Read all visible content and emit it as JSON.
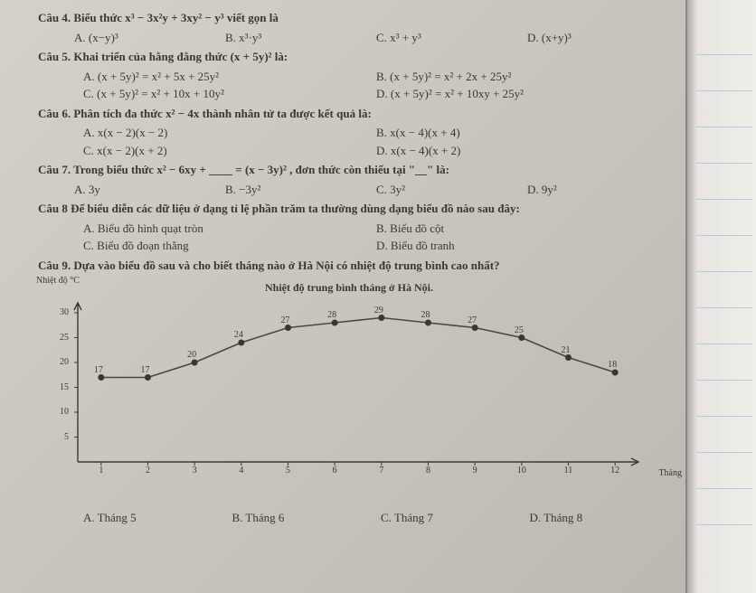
{
  "q4": {
    "stem": "Câu 4. Biểu thức x³ − 3x²y + 3xy² − y³ viết gọn là",
    "a": "A. (x−y)³",
    "b": "B. x³·y³",
    "c": "C. x³ + y³",
    "d": "D. (x+y)³"
  },
  "q5": {
    "stem": "Câu 5. Khai triển của hằng đẳng thức (x + 5y)² là:",
    "a": "A. (x + 5y)² = x² + 5x + 25y²",
    "b": "B. (x + 5y)² = x² + 2x + 25y²",
    "c": "C. (x + 5y)² = x² + 10x + 10y²",
    "d": "D. (x + 5y)² = x² + 10xy + 25y²"
  },
  "q6": {
    "stem": "Câu 6. Phân tích đa thức  x² − 4x  thành nhân tử ta được kết quả là:",
    "a": "A. x(x − 2)(x − 2)",
    "b": "B. x(x − 4)(x + 4)",
    "c": "C. x(x − 2)(x + 2)",
    "d": "D. x(x − 4)(x + 2)"
  },
  "q7": {
    "stem": "Câu 7. Trong biểu thức  x² − 6xy + ____ = (x − 3y)² , đơn thức còn thiếu tại \"__\" là:",
    "a": "A. 3y",
    "b": "B. −3y²",
    "c": "C. 3y²",
    "d": "D. 9y²"
  },
  "q8": {
    "stem": "Câu 8 Để biểu diễn các dữ liệu ở dạng tỉ lệ phần trăm ta thường dùng dạng biểu đồ nào sau đây:",
    "a": "A. Biểu đồ hình quạt tròn",
    "b": "B. Biểu đồ cột",
    "c": "C. Biểu đồ đoạn thẳng",
    "d": "D. Biểu đồ tranh"
  },
  "q9": {
    "stem": "Câu 9. Dựa vào biểu đồ sau và cho biết tháng nào ở Hà Nội có nhiệt độ trung bình cao nhất?",
    "a": "A. Tháng 5",
    "b": "B. Tháng 6",
    "c": "C. Tháng 7",
    "d": "D. Tháng 8"
  },
  "chart": {
    "type": "line",
    "title": "Nhiệt độ trung bình tháng ở Hà Nội.",
    "ylabel_text": "Nhiệt độ °C",
    "xlabel_text": "Tháng",
    "x": [
      1,
      2,
      3,
      4,
      5,
      6,
      7,
      8,
      9,
      10,
      11,
      12
    ],
    "y": [
      17,
      17,
      20,
      24,
      27,
      28,
      29,
      28,
      27,
      25,
      21,
      18
    ],
    "y_labels": [
      "17",
      "17",
      "20",
      "24",
      "27",
      "28",
      "29",
      "28",
      "27",
      "25",
      "21",
      "18"
    ],
    "ylim": [
      0,
      32
    ],
    "yticks": [
      5,
      10,
      15,
      20,
      25,
      30
    ],
    "xticks": [
      1,
      2,
      3,
      4,
      5,
      6,
      7,
      8,
      9,
      10,
      11,
      12
    ],
    "line_color": "#4a4642",
    "marker_color": "#3a3632",
    "marker_size": 3.5,
    "line_width": 1.6,
    "axis_color": "#3a3834",
    "background_color": "transparent",
    "label_fontsize": 10
  },
  "colors": {
    "text": "#3a3834",
    "page_bg_start": "#d4d0ca",
    "page_bg_end": "#bcb8b2"
  }
}
